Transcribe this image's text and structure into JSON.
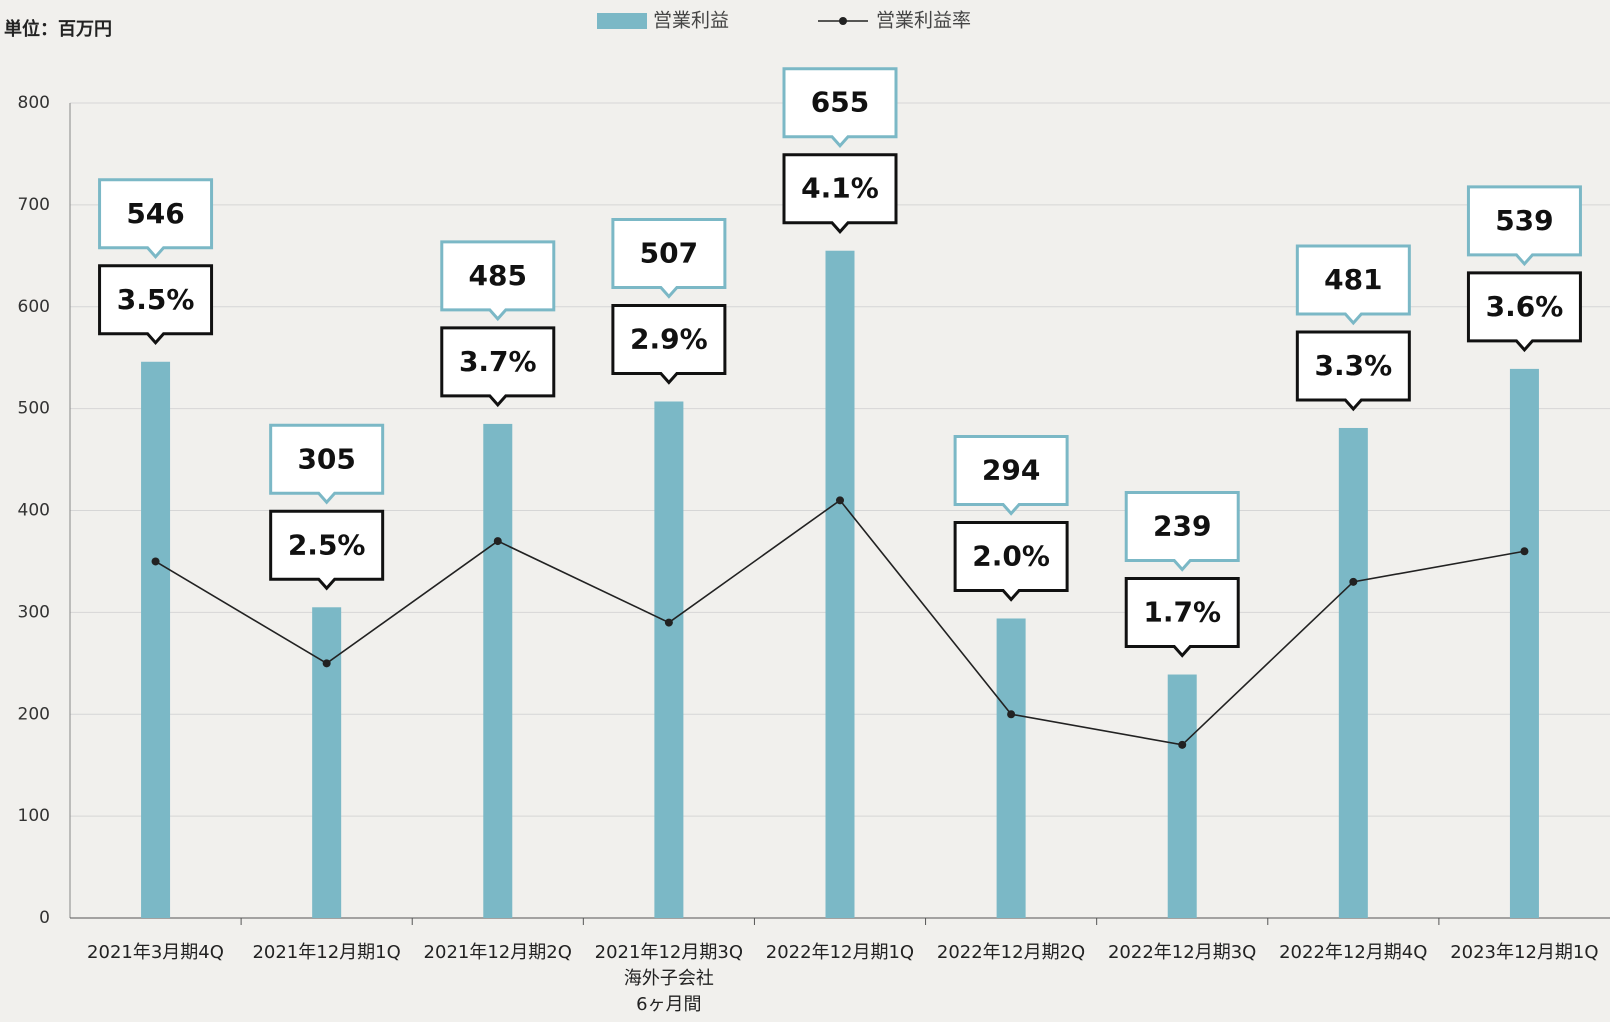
{
  "chart_data": {
    "type": "bar",
    "unit_label": "単位：百万円",
    "categories": [
      "2021年3月期4Q",
      "2021年12月期1Q",
      "2021年12月期2Q",
      "2021年12月期3Q\n海外子会社\n6ヶ月間",
      "2022年12月期1Q",
      "2022年12月期2Q",
      "2022年12月期3Q",
      "2022年12月期4Q",
      "2023年12月期1Q"
    ],
    "series": [
      {
        "name": "営業利益",
        "type": "bar",
        "color": "#7bb8c6",
        "values": [
          546,
          305,
          485,
          507,
          655,
          294,
          239,
          481,
          539
        ]
      },
      {
        "name": "営業利益率",
        "type": "line",
        "axis": "y2",
        "color": "#222222",
        "values": [
          3.5,
          2.5,
          3.7,
          2.9,
          4.1,
          2.0,
          1.7,
          3.3,
          3.6
        ],
        "value_labels": [
          "3.5%",
          "2.5%",
          "3.7%",
          "2.9%",
          "4.1%",
          "2.0%",
          "1.7%",
          "3.3%",
          "3.6%"
        ]
      }
    ],
    "ylim": [
      0,
      800
    ],
    "yticks": [
      0,
      100,
      200,
      300,
      400,
      500,
      600,
      700,
      800
    ],
    "y2lim": [
      0,
      8
    ],
    "grid": true,
    "legend": "top"
  }
}
